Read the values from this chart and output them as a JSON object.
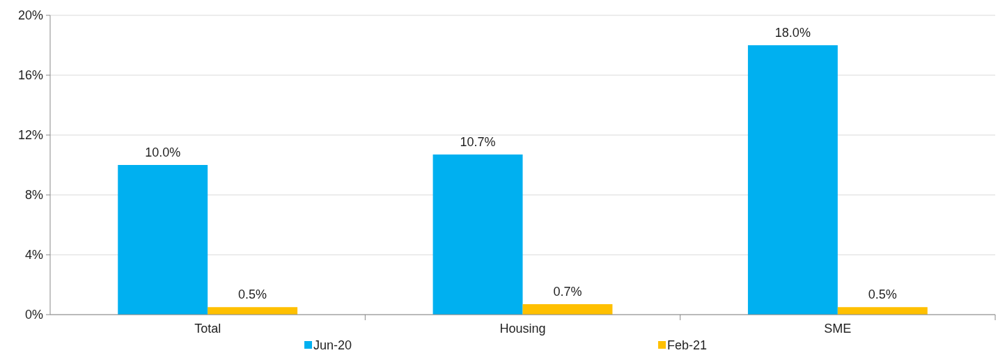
{
  "chart_data": {
    "type": "bar",
    "categories": [
      "Total",
      "Housing",
      "SME"
    ],
    "series": [
      {
        "name": "Jun-20",
        "color": "#00b0f0",
        "values": [
          10.0,
          10.7,
          18.0
        ],
        "value_labels": [
          "10.0%",
          "10.7%",
          "18.0%"
        ]
      },
      {
        "name": "Feb-21",
        "color": "#ffc000",
        "values": [
          0.5,
          0.7,
          0.5
        ],
        "value_labels": [
          "0.5%",
          "0.7%",
          "0.5%"
        ]
      }
    ],
    "ylim": [
      0,
      20
    ],
    "yticks": [
      {
        "value": 0,
        "label": "0%"
      },
      {
        "value": 4,
        "label": "4%"
      },
      {
        "value": 8,
        "label": "8%"
      },
      {
        "value": 12,
        "label": "12%"
      },
      {
        "value": 16,
        "label": "16%"
      },
      {
        "value": 20,
        "label": "20%"
      }
    ],
    "grid": "y",
    "legend": "bottom"
  }
}
